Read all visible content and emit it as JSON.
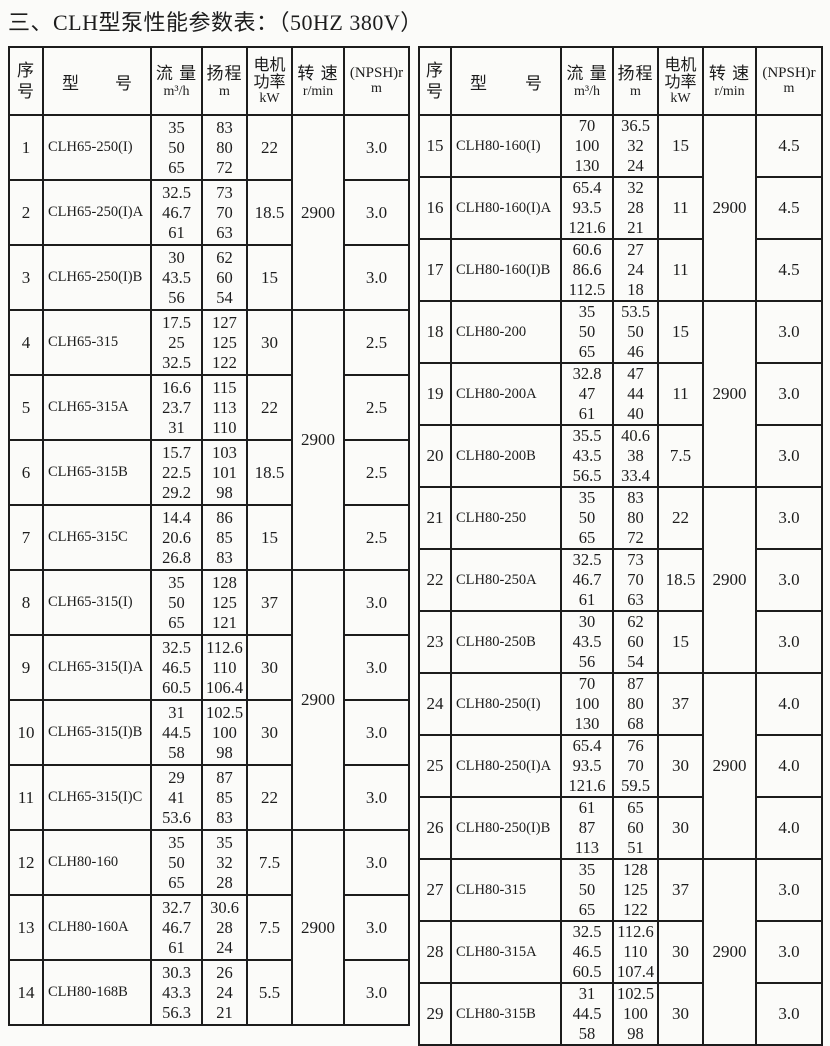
{
  "title": "三、CLH型泵性能参数表：（50HZ 380V）",
  "colors": {
    "text": "#1c1c1c",
    "border": "#1c1c1c",
    "background": "#fbfbf9"
  },
  "header": {
    "no_l1": "序",
    "no_l2": "号",
    "model_l": "型",
    "model_r": "号",
    "flow_l1": "流 量",
    "flow_unit": "m³/h",
    "head_l1": "扬程",
    "head_unit": "m",
    "power_l1": "电机",
    "power_l2": "功率",
    "power_unit": "kW",
    "speed_l1": "转 速",
    "speed_unit": "r/min",
    "npsh_l1": "(NPSH)r",
    "npsh_unit": "m"
  },
  "tables": [
    {
      "side": "left",
      "speed_groups": [
        {
          "rows": 3,
          "value": "2900"
        },
        {
          "rows": 4,
          "value": "2900"
        },
        {
          "rows": 4,
          "value": "2900"
        },
        {
          "rows": 3,
          "value": "2900"
        }
      ],
      "rows": [
        {
          "no": "1",
          "model": "CLH65-250(I)",
          "flow": [
            "35",
            "50",
            "65"
          ],
          "head": [
            "83",
            "80",
            "72"
          ],
          "power": "22",
          "npsh": "3.0"
        },
        {
          "no": "2",
          "model": "CLH65-250(I)A",
          "flow": [
            "32.5",
            "46.7",
            "61"
          ],
          "head": [
            "73",
            "70",
            "63"
          ],
          "power": "18.5",
          "npsh": "3.0"
        },
        {
          "no": "3",
          "model": "CLH65-250(I)B",
          "flow": [
            "30",
            "43.5",
            "56"
          ],
          "head": [
            "62",
            "60",
            "54"
          ],
          "power": "15",
          "npsh": "3.0"
        },
        {
          "no": "4",
          "model": "CLH65-315",
          "flow": [
            "17.5",
            "25",
            "32.5"
          ],
          "head": [
            "127",
            "125",
            "122"
          ],
          "power": "30",
          "npsh": "2.5"
        },
        {
          "no": "5",
          "model": "CLH65-315A",
          "flow": [
            "16.6",
            "23.7",
            "31"
          ],
          "head": [
            "115",
            "113",
            "110"
          ],
          "power": "22",
          "npsh": "2.5"
        },
        {
          "no": "6",
          "model": "CLH65-315B",
          "flow": [
            "15.7",
            "22.5",
            "29.2"
          ],
          "head": [
            "103",
            "101",
            "98"
          ],
          "power": "18.5",
          "npsh": "2.5"
        },
        {
          "no": "7",
          "model": "CLH65-315C",
          "flow": [
            "14.4",
            "20.6",
            "26.8"
          ],
          "head": [
            "86",
            "85",
            "83"
          ],
          "power": "15",
          "npsh": "2.5"
        },
        {
          "no": "8",
          "model": "CLH65-315(I)",
          "flow": [
            "35",
            "50",
            "65"
          ],
          "head": [
            "128",
            "125",
            "121"
          ],
          "power": "37",
          "npsh": "3.0"
        },
        {
          "no": "9",
          "model": "CLH65-315(I)A",
          "flow": [
            "32.5",
            "46.5",
            "60.5"
          ],
          "head": [
            "112.6",
            "110",
            "106.4"
          ],
          "power": "30",
          "npsh": "3.0"
        },
        {
          "no": "10",
          "model": "CLH65-315(I)B",
          "flow": [
            "31",
            "44.5",
            "58"
          ],
          "head": [
            "102.5",
            "100",
            "98"
          ],
          "power": "30",
          "npsh": "3.0"
        },
        {
          "no": "11",
          "model": "CLH65-315(I)C",
          "flow": [
            "29",
            "41",
            "53.6"
          ],
          "head": [
            "87",
            "85",
            "83"
          ],
          "power": "22",
          "npsh": "3.0"
        },
        {
          "no": "12",
          "model": "CLH80-160",
          "flow": [
            "35",
            "50",
            "65"
          ],
          "head": [
            "35",
            "32",
            "28"
          ],
          "power": "7.5",
          "npsh": "3.0"
        },
        {
          "no": "13",
          "model": "CLH80-160A",
          "flow": [
            "32.7",
            "46.7",
            "61"
          ],
          "head": [
            "30.6",
            "28",
            "24"
          ],
          "power": "7.5",
          "npsh": "3.0"
        },
        {
          "no": "14",
          "model": "CLH80-168B",
          "flow": [
            "30.3",
            "43.3",
            "56.3"
          ],
          "head": [
            "26",
            "24",
            "21"
          ],
          "power": "5.5",
          "npsh": "3.0"
        }
      ]
    },
    {
      "side": "right",
      "speed_groups": [
        {
          "rows": 3,
          "value": "2900"
        },
        {
          "rows": 3,
          "value": "2900"
        },
        {
          "rows": 3,
          "value": "2900"
        },
        {
          "rows": 3,
          "value": "2900"
        },
        {
          "rows": 3,
          "value": "2900"
        }
      ],
      "rows": [
        {
          "no": "15",
          "model": "CLH80-160(I)",
          "flow": [
            "70",
            "100",
            "130"
          ],
          "head": [
            "36.5",
            "32",
            "24"
          ],
          "power": "15",
          "npsh": "4.5"
        },
        {
          "no": "16",
          "model": "CLH80-160(I)A",
          "flow": [
            "65.4",
            "93.5",
            "121.6"
          ],
          "head": [
            "32",
            "28",
            "21"
          ],
          "power": "11",
          "npsh": "4.5"
        },
        {
          "no": "17",
          "model": "CLH80-160(I)B",
          "flow": [
            "60.6",
            "86.6",
            "112.5"
          ],
          "head": [
            "27",
            "24",
            "18"
          ],
          "power": "11",
          "npsh": "4.5"
        },
        {
          "no": "18",
          "model": "CLH80-200",
          "flow": [
            "35",
            "50",
            "65"
          ],
          "head": [
            "53.5",
            "50",
            "46"
          ],
          "power": "15",
          "npsh": "3.0"
        },
        {
          "no": "19",
          "model": "CLH80-200A",
          "flow": [
            "32.8",
            "47",
            "61"
          ],
          "head": [
            "47",
            "44",
            "40"
          ],
          "power": "11",
          "npsh": "3.0"
        },
        {
          "no": "20",
          "model": "CLH80-200B",
          "flow": [
            "35.5",
            "43.5",
            "56.5"
          ],
          "head": [
            "40.6",
            "38",
            "33.4"
          ],
          "power": "7.5",
          "npsh": "3.0"
        },
        {
          "no": "21",
          "model": "CLH80-250",
          "flow": [
            "35",
            "50",
            "65"
          ],
          "head": [
            "83",
            "80",
            "72"
          ],
          "power": "22",
          "npsh": "3.0"
        },
        {
          "no": "22",
          "model": "CLH80-250A",
          "flow": [
            "32.5",
            "46.7",
            "61"
          ],
          "head": [
            "73",
            "70",
            "63"
          ],
          "power": "18.5",
          "npsh": "3.0"
        },
        {
          "no": "23",
          "model": "CLH80-250B",
          "flow": [
            "30",
            "43.5",
            "56"
          ],
          "head": [
            "62",
            "60",
            "54"
          ],
          "power": "15",
          "npsh": "3.0"
        },
        {
          "no": "24",
          "model": "CLH80-250(I)",
          "flow": [
            "70",
            "100",
            "130"
          ],
          "head": [
            "87",
            "80",
            "68"
          ],
          "power": "37",
          "npsh": "4.0"
        },
        {
          "no": "25",
          "model": "CLH80-250(I)A",
          "flow": [
            "65.4",
            "93.5",
            "121.6"
          ],
          "head": [
            "76",
            "70",
            "59.5"
          ],
          "power": "30",
          "npsh": "4.0"
        },
        {
          "no": "26",
          "model": "CLH80-250(I)B",
          "flow": [
            "61",
            "87",
            "113"
          ],
          "head": [
            "65",
            "60",
            "51"
          ],
          "power": "30",
          "npsh": "4.0"
        },
        {
          "no": "27",
          "model": "CLH80-315",
          "flow": [
            "35",
            "50",
            "65"
          ],
          "head": [
            "128",
            "125",
            "122"
          ],
          "power": "37",
          "npsh": "3.0"
        },
        {
          "no": "28",
          "model": "CLH80-315A",
          "flow": [
            "32.5",
            "46.5",
            "60.5"
          ],
          "head": [
            "112.6",
            "110",
            "107.4"
          ],
          "power": "30",
          "npsh": "3.0"
        },
        {
          "no": "29",
          "model": "CLH80-315B",
          "flow": [
            "31",
            "44.5",
            "58"
          ],
          "head": [
            "102.5",
            "100",
            "98"
          ],
          "power": "30",
          "npsh": "3.0"
        }
      ]
    }
  ]
}
